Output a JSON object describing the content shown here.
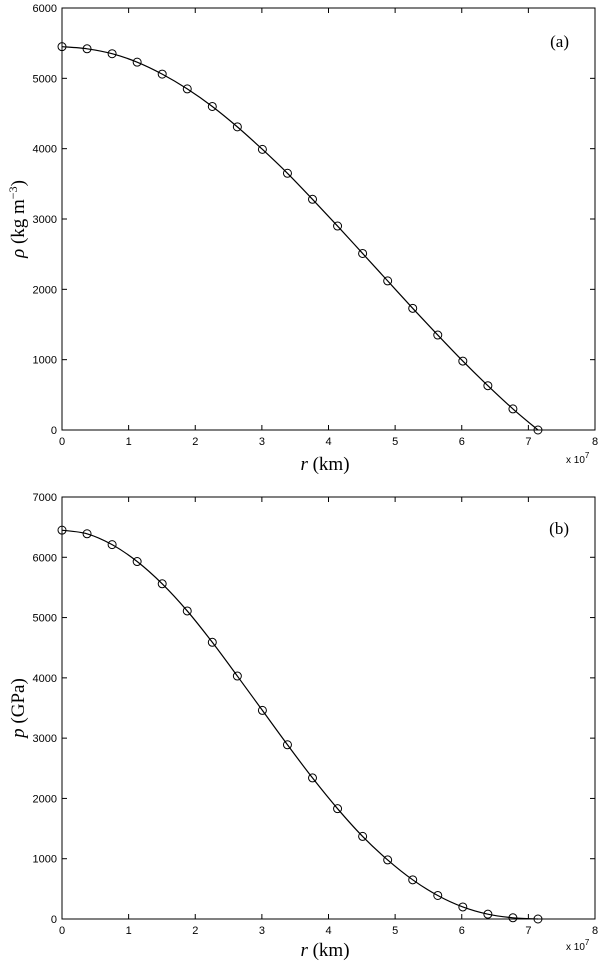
{
  "chart_data": [
    {
      "type": "line",
      "panel_label": "(a)",
      "xlabel": {
        "symbol": "r",
        "unit": " (km)"
      },
      "ylabel": {
        "symbol": "ρ",
        "unit_pre": " (kg m",
        "unit_sup": "−3",
        "unit_post": ")"
      },
      "x_exponent": {
        "base": "x 10",
        "power": "7"
      },
      "xlim": [
        0,
        8
      ],
      "ylim": [
        0,
        6000
      ],
      "xticks": [
        0,
        1,
        2,
        3,
        4,
        5,
        6,
        7,
        8
      ],
      "yticks": [
        0,
        1000,
        2000,
        3000,
        4000,
        5000,
        6000
      ],
      "series": [
        {
          "x": [
            0,
            0.376,
            0.752,
            1.128,
            1.504,
            1.88,
            2.256,
            2.632,
            3.008,
            3.384,
            3.76,
            4.136,
            4.512,
            4.888,
            5.264,
            5.64,
            6.016,
            6.392,
            6.768,
            7.144
          ],
          "y": [
            5450,
            5420,
            5350,
            5230,
            5060,
            4850,
            4600,
            4310,
            3990,
            3650,
            3280,
            2900,
            2510,
            2120,
            1730,
            1350,
            980,
            630,
            300,
            0
          ]
        }
      ]
    },
    {
      "type": "line",
      "panel_label": "(b)",
      "xlabel": {
        "symbol": "r",
        "unit": " (km)"
      },
      "ylabel": {
        "symbol": "p",
        "unit_pre": " (GPa)",
        "unit_sup": "",
        "unit_post": ""
      },
      "x_exponent": {
        "base": "x 10",
        "power": "7"
      },
      "xlim": [
        0,
        8
      ],
      "ylim": [
        0,
        7000
      ],
      "xticks": [
        0,
        1,
        2,
        3,
        4,
        5,
        6,
        7,
        8
      ],
      "yticks": [
        0,
        1000,
        2000,
        3000,
        4000,
        5000,
        6000,
        7000
      ],
      "series": [
        {
          "x": [
            0,
            0.376,
            0.752,
            1.128,
            1.504,
            1.88,
            2.256,
            2.632,
            3.008,
            3.384,
            3.76,
            4.136,
            4.512,
            4.888,
            5.264,
            5.64,
            6.016,
            6.392,
            6.768,
            7.144
          ],
          "y": [
            6450,
            6390,
            6210,
            5930,
            5560,
            5110,
            4590,
            4030,
            3460,
            2890,
            2340,
            1830,
            1370,
            980,
            650,
            390,
            200,
            80,
            20,
            0
          ]
        }
      ]
    }
  ]
}
